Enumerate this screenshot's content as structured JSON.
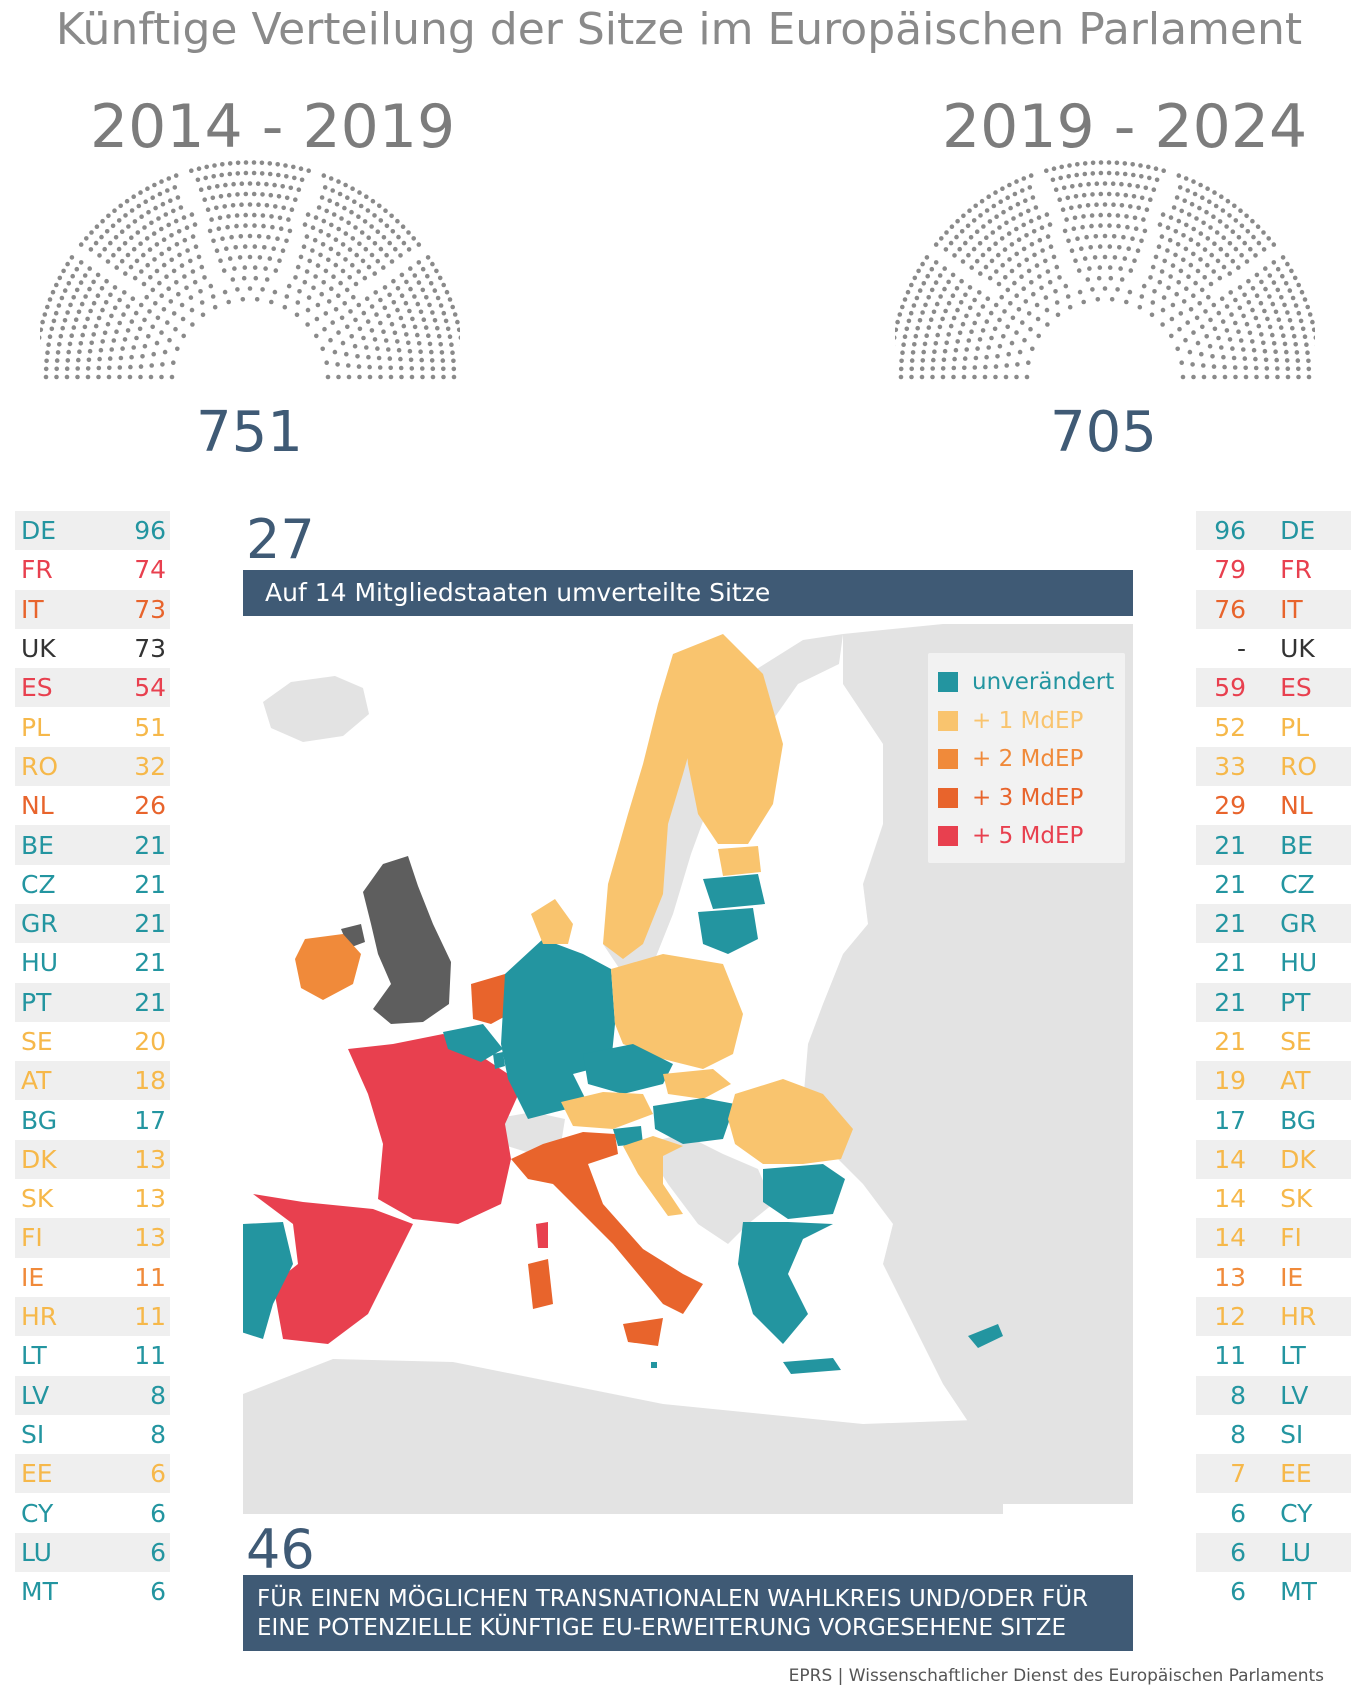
{
  "title": "Künftige Verteilung der Sitze im Europäischen Parlament",
  "left": {
    "period": "2014 - 2019",
    "total": "751"
  },
  "right": {
    "period": "2019 - 2024",
    "total": "705"
  },
  "redistributed": {
    "number": "27",
    "label": "Auf 14 Mitgliedstaaten umverteilte Sitze"
  },
  "reserved": {
    "number": "46",
    "line1": "FÜR EINEN MÖGLICHEN TRANSNATIONALEN WAHLKREIS UND/ODER FÜR",
    "line2": "EINE POTENZIELLE KÜNFTIGE EU-ERWEITERUNG VORGESEHENE SITZE"
  },
  "legend": [
    {
      "label": "unverändert",
      "color": "#2395a0"
    },
    {
      "label": "+ 1 MdEP",
      "color": "#f9c46e"
    },
    {
      "label": "+ 2 MdEP",
      "color": "#f08a3a"
    },
    {
      "label": "+ 3 MdEP",
      "color": "#e8642c"
    },
    {
      "label": "+ 5 MdEP",
      "color": "#e8404f"
    }
  ],
  "countries": [
    {
      "code": "DE",
      "old": "96",
      "new": "96",
      "cat": "same"
    },
    {
      "code": "FR",
      "old": "74",
      "new": "79",
      "cat": "p5"
    },
    {
      "code": "IT",
      "old": "73",
      "new": "76",
      "cat": "p3"
    },
    {
      "code": "UK",
      "old": "73",
      "new": "-",
      "cat": "none"
    },
    {
      "code": "ES",
      "old": "54",
      "new": "59",
      "cat": "p5"
    },
    {
      "code": "PL",
      "old": "51",
      "new": "52",
      "cat": "p1"
    },
    {
      "code": "RO",
      "old": "32",
      "new": "33",
      "cat": "p1"
    },
    {
      "code": "NL",
      "old": "26",
      "new": "29",
      "cat": "p3"
    },
    {
      "code": "BE",
      "old": "21",
      "new": "21",
      "cat": "same"
    },
    {
      "code": "CZ",
      "old": "21",
      "new": "21",
      "cat": "same"
    },
    {
      "code": "GR",
      "old": "21",
      "new": "21",
      "cat": "same"
    },
    {
      "code": "HU",
      "old": "21",
      "new": "21",
      "cat": "same"
    },
    {
      "code": "PT",
      "old": "21",
      "new": "21",
      "cat": "same"
    },
    {
      "code": "SE",
      "old": "20",
      "new": "21",
      "cat": "p1"
    },
    {
      "code": "AT",
      "old": "18",
      "new": "19",
      "cat": "p1"
    },
    {
      "code": "BG",
      "old": "17",
      "new": "17",
      "cat": "same"
    },
    {
      "code": "DK",
      "old": "13",
      "new": "14",
      "cat": "p1"
    },
    {
      "code": "SK",
      "old": "13",
      "new": "14",
      "cat": "p1"
    },
    {
      "code": "FI",
      "old": "13",
      "new": "14",
      "cat": "p1"
    },
    {
      "code": "IE",
      "old": "11",
      "new": "13",
      "cat": "p2"
    },
    {
      "code": "HR",
      "old": "11",
      "new": "12",
      "cat": "p1"
    },
    {
      "code": "LT",
      "old": "11",
      "new": "11",
      "cat": "same"
    },
    {
      "code": "LV",
      "old": "8",
      "new": "8",
      "cat": "same"
    },
    {
      "code": "SI",
      "old": "8",
      "new": "8",
      "cat": "same"
    },
    {
      "code": "EE",
      "old": "6",
      "new": "7",
      "cat": "p1"
    },
    {
      "code": "CY",
      "old": "6",
      "new": "6",
      "cat": "same"
    },
    {
      "code": "LU",
      "old": "6",
      "new": "6",
      "cat": "same"
    },
    {
      "code": "MT",
      "old": "6",
      "new": "6",
      "cat": "same"
    }
  ],
  "footer": "EPRS | Wissenschaftlicher Dienst des Europäischen Parlaments",
  "map_colors": {
    "same": "#2395a0",
    "p1": "#f9c46e",
    "p2": "#f08a3a",
    "p3": "#e8642c",
    "p5": "#e8404f",
    "uk": "#5e5e5e",
    "nonEU": "#e3e3e3",
    "sea": "#ffffff"
  }
}
